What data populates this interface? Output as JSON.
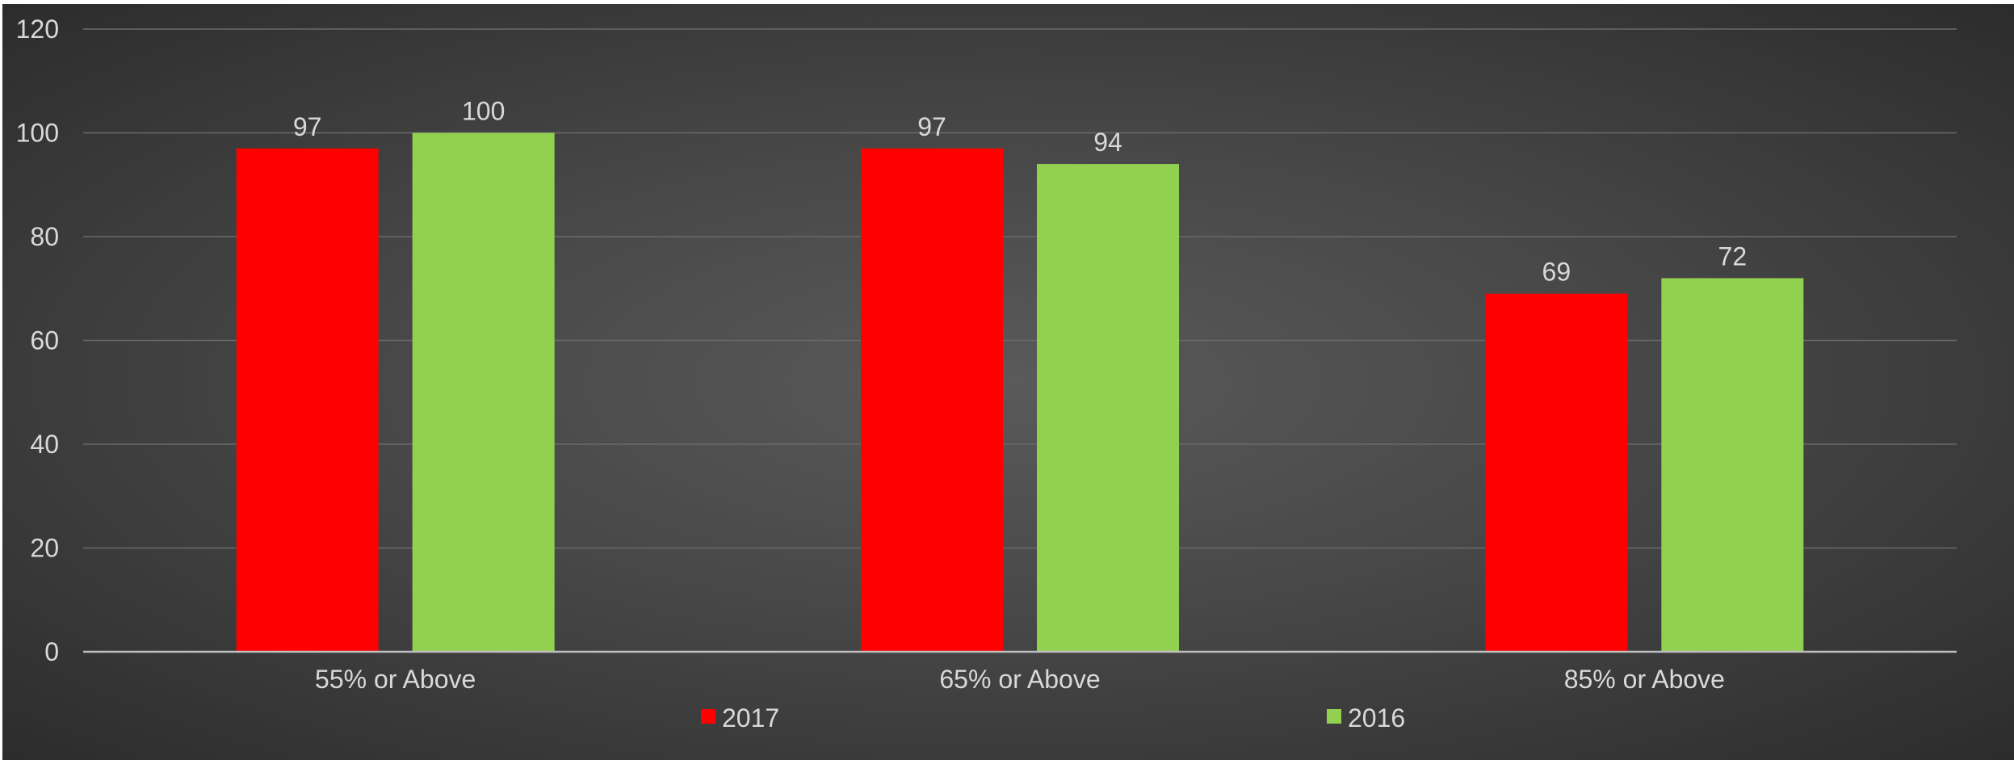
{
  "chart_data": {
    "type": "bar",
    "categories": [
      "55% or Above",
      "65% or Above",
      "85% or Above"
    ],
    "series": [
      {
        "name": "2017",
        "values": [
          97,
          97,
          69
        ],
        "color": "#ff0000"
      },
      {
        "name": "2016",
        "values": [
          100,
          94,
          72
        ],
        "color": "#92d050"
      }
    ],
    "yticks": [
      "0",
      "20",
      "40",
      "60",
      "80",
      "100",
      "120"
    ],
    "ylim": [
      0,
      120
    ],
    "grid": true,
    "legend_position": "bottom",
    "data_labels": true,
    "background": "#474747"
  }
}
